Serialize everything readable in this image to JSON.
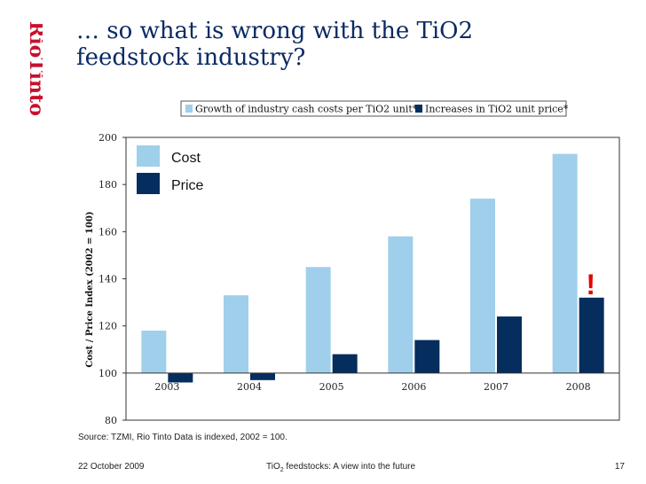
{
  "brand": {
    "name": "RioTinto",
    "color": "#c8102e"
  },
  "title": {
    "line1": "… so what is wrong with the TiO2",
    "line2": "feedstock industry?"
  },
  "chart_data": {
    "type": "bar",
    "categories": [
      "2003",
      "2004",
      "2005",
      "2006",
      "2007",
      "2008"
    ],
    "series": [
      {
        "name": "Growth of industry cash costs per TiO2 unit*",
        "short_name": "Cost",
        "color": "#9fcfeb",
        "values": [
          118,
          133,
          145,
          158,
          174,
          193
        ]
      },
      {
        "name": "Increases in TiO2 unit price*",
        "short_name": "Price",
        "color": "#052d5e",
        "values": [
          96,
          97,
          108,
          114,
          124,
          132
        ]
      }
    ],
    "ylabel": "Cost / Price Index (2002 = 100)",
    "ylim": [
      80,
      200
    ],
    "yticks": [
      200,
      180,
      160,
      140,
      120,
      100,
      80
    ],
    "baseline": 100,
    "grid": false,
    "legend_position": "top-right",
    "annotation": "!"
  },
  "source": "Source: TZMI, Rio Tinto  Data is indexed, 2002 = 100.",
  "footer": {
    "date": "22 October 2009",
    "center_pre": "TiO",
    "center_sub": "2",
    "center_post": " feedstocks: A view into the future",
    "page": "17"
  }
}
